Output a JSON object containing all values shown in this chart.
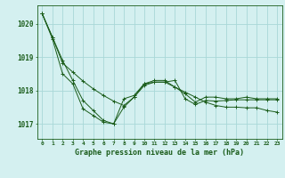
{
  "title": "Graphe pression niveau de la mer (hPa)",
  "bg_color": "#d4f0f0",
  "grid_color": "#a8d8d8",
  "line_color": "#1a5c1a",
  "x_hours": [
    0,
    1,
    2,
    3,
    4,
    5,
    6,
    7,
    8,
    9,
    10,
    11,
    12,
    13,
    14,
    15,
    16,
    17,
    18,
    19,
    20,
    21,
    22,
    23
  ],
  "series1": [
    1020.3,
    1019.6,
    1018.9,
    1018.3,
    1017.7,
    1017.4,
    1017.1,
    1017.0,
    1017.5,
    1017.8,
    1018.2,
    1018.3,
    1018.3,
    1018.1,
    1017.9,
    1017.65,
    1017.8,
    1017.8,
    1017.75,
    1017.75,
    1017.8,
    1017.75,
    1017.75,
    1017.75
  ],
  "series2": [
    1020.3,
    1019.6,
    1018.82,
    1018.55,
    1018.28,
    1018.05,
    1017.85,
    1017.68,
    1017.55,
    1017.8,
    1018.15,
    1018.25,
    1018.25,
    1018.1,
    1017.95,
    1017.8,
    1017.65,
    1017.55,
    1017.5,
    1017.5,
    1017.48,
    1017.48,
    1017.4,
    1017.35
  ],
  "series3": [
    1020.3,
    1019.55,
    1018.5,
    1018.2,
    1017.45,
    1017.25,
    1017.05,
    1017.0,
    1017.75,
    1017.85,
    1018.2,
    1018.25,
    1018.25,
    1018.3,
    1017.75,
    1017.58,
    1017.7,
    1017.68,
    1017.7,
    1017.72,
    1017.72,
    1017.72,
    1017.72,
    1017.72
  ],
  "ylim_min": 1016.55,
  "ylim_max": 1020.55,
  "yticks": [
    1017,
    1018,
    1019,
    1020
  ]
}
